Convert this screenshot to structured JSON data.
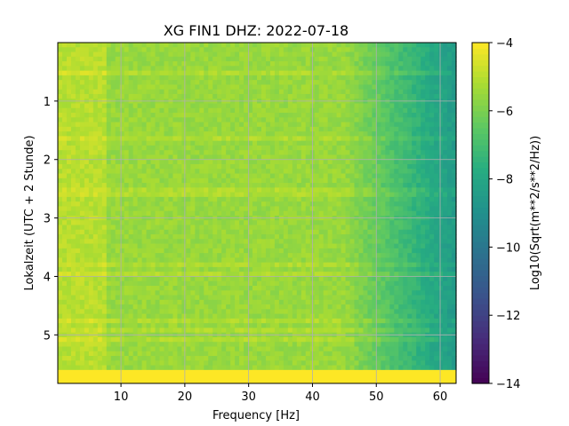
{
  "chart_data": {
    "type": "heatmap",
    "title": "XG FIN1  DHZ: 2022-07-18",
    "xlabel": "Frequency [Hz]",
    "ylabel": "Lokalzeit (UTC + 2 Stunde)",
    "xlim": [
      0.1,
      62.5
    ],
    "ylim": [
      5.83,
      0.0
    ],
    "xticks": [
      10,
      20,
      30,
      40,
      50,
      60
    ],
    "yticks": [
      1,
      2,
      3,
      4,
      5
    ],
    "grid": true,
    "colorbar": {
      "label": "Log10(Sqrt(m**2/s**2/Hz))",
      "range": [
        -14,
        -4
      ],
      "ticks": [
        -4,
        -6,
        -8,
        -10,
        -12,
        -14
      ],
      "colormap": "viridis"
    },
    "description_values": {
      "low_freq_level": -5.2,
      "high_freq_level": -8.2,
      "saturated_band_start_hour": 5.6,
      "saturated_level": -4
    },
    "colors": {
      "axis": "#000000",
      "grid": "#b0b0b0"
    }
  }
}
